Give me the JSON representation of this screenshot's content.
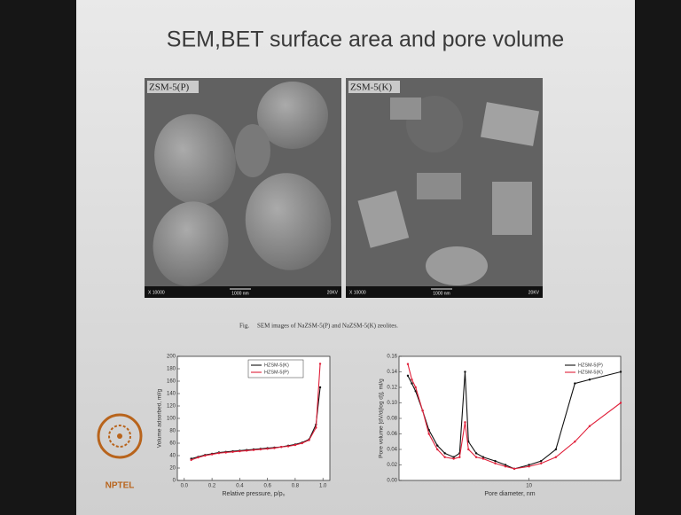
{
  "slide": {
    "title": "SEM,BET surface area and pore volume",
    "images": [
      {
        "label": "ZSM-5(P)",
        "magnification": "X 10000",
        "scale": "1000 nm",
        "voltage": "20KV"
      },
      {
        "label": "ZSM-5(K)",
        "magnification": "X 10000",
        "scale": "1000 nm",
        "voltage": "20KV"
      }
    ],
    "caption_label": "Fig.",
    "caption": "SEM images of NaZSM-5(P) and NaZSM-5(K) zeolites.",
    "logo": "NPTEL"
  },
  "chart_data": [
    {
      "type": "line",
      "xlabel": "Relative pressure, p/p₀",
      "ylabel": "Volume adsorbed, ml/g",
      "x": [
        0.05,
        0.1,
        0.15,
        0.2,
        0.25,
        0.3,
        0.35,
        0.4,
        0.45,
        0.5,
        0.55,
        0.6,
        0.65,
        0.7,
        0.75,
        0.8,
        0.85,
        0.9,
        0.95,
        0.98
      ],
      "series": [
        {
          "name": "HZSM-5(K)",
          "color": "#111111",
          "values": [
            35,
            38,
            41,
            43,
            45,
            46,
            47,
            48,
            49,
            50,
            51,
            52,
            53,
            54,
            56,
            58,
            61,
            66,
            90,
            150
          ]
        },
        {
          "name": "HZSM-5(P)",
          "color": "#e0203a",
          "values": [
            33,
            37,
            40,
            42,
            44,
            45,
            46,
            47,
            48,
            49,
            50,
            51,
            52,
            54,
            55,
            57,
            60,
            65,
            85,
            188
          ]
        }
      ],
      "xlim": [
        -0.05,
        1.05
      ],
      "ylim": [
        0,
        200
      ],
      "xticks": [
        {
          "value": 0,
          "label": "0.0"
        },
        0.2,
        0.4,
        0.6,
        0.8,
        {
          "value": 1,
          "label": "1.0"
        }
      ],
      "yticks": [
        0,
        20,
        40,
        60,
        80,
        100,
        120,
        140,
        160,
        180,
        200
      ],
      "legend": "upper center",
      "legend_frame": true,
      "xlog": false
    },
    {
      "type": "line",
      "xlabel": "Pore diameter, nm",
      "ylabel": "Pore volume [dV/d(log d)], ml/g",
      "x": [
        1.6,
        1.7,
        1.8,
        2.0,
        2.2,
        2.5,
        2.8,
        3.2,
        3.5,
        3.8,
        4.0,
        4.5,
        5.0,
        6.0,
        7.0,
        8.0,
        10,
        12,
        15,
        20,
        25,
        40
      ],
      "series": [
        {
          "name": "HZSM-5(P)",
          "color": "#111111",
          "values": [
            0.135,
            0.125,
            0.115,
            0.09,
            0.065,
            0.045,
            0.035,
            0.03,
            0.035,
            0.14,
            0.05,
            0.035,
            0.03,
            0.025,
            0.02,
            0.015,
            0.02,
            0.025,
            0.04,
            0.125,
            0.13,
            0.14
          ]
        },
        {
          "name": "HZSM-5(K)",
          "color": "#e0203a",
          "values": [
            0.15,
            0.13,
            0.12,
            0.09,
            0.06,
            0.04,
            0.03,
            0.028,
            0.03,
            0.075,
            0.04,
            0.03,
            0.028,
            0.022,
            0.018,
            0.015,
            0.018,
            0.022,
            0.03,
            0.05,
            0.07,
            0.1
          ]
        }
      ],
      "xlim": [
        1.4,
        40
      ],
      "ylim": [
        0,
        0.16
      ],
      "xticks": [
        10
      ],
      "yticks": [
        {
          "value": 0,
          "label": "0.00"
        },
        0.02,
        0.04,
        0.06,
        0.08,
        {
          "value": 0.1,
          "label": "0.10"
        },
        {
          "value": 0.12,
          "label": "0.12"
        },
        {
          "value": 0.14,
          "label": "0.14"
        },
        {
          "value": 0.16,
          "label": "0.16"
        }
      ],
      "legend": "upper right",
      "legend_frame": false,
      "xlog": true
    }
  ]
}
